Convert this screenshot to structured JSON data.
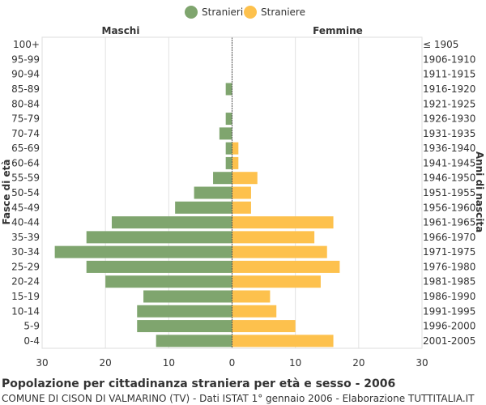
{
  "chart_data": {
    "type": "bar",
    "orientation": "horizontal",
    "title": "Popolazione per cittadinanza straniera per età e sesso - 2006",
    "subtitle": "COMUNE DI CISON DI VALMARINO (TV) - Dati ISTAT 1° gennaio 2006 - Elaborazione TUTTITALIA.IT",
    "left_header": "Maschi",
    "right_header": "Femmine",
    "ylabel_left": "Fasce di età",
    "ylabel_right": "Anni di nascita",
    "xlim": [
      -30,
      30
    ],
    "xticks": [
      -30,
      -20,
      -10,
      0,
      10,
      20,
      30
    ],
    "xtick_labels": [
      "30",
      "20",
      "10",
      "0",
      "10",
      "20",
      "30"
    ],
    "grid": true,
    "legend_position": "top-center",
    "age_groups": [
      "100+",
      "95-99",
      "90-94",
      "85-89",
      "80-84",
      "75-79",
      "70-74",
      "65-69",
      "60-64",
      "55-59",
      "50-54",
      "45-49",
      "40-44",
      "35-39",
      "30-34",
      "25-29",
      "20-24",
      "15-19",
      "10-14",
      "5-9",
      "0-4"
    ],
    "birth_years": [
      "≤ 1905",
      "1906-1910",
      "1911-1915",
      "1916-1920",
      "1921-1925",
      "1926-1930",
      "1931-1935",
      "1936-1940",
      "1941-1945",
      "1946-1950",
      "1951-1955",
      "1956-1960",
      "1961-1965",
      "1966-1970",
      "1971-1975",
      "1976-1980",
      "1981-1985",
      "1986-1990",
      "1991-1995",
      "1996-2000",
      "2001-2005"
    ],
    "series": [
      {
        "name": "Stranieri",
        "color": "#7fa56e",
        "side": "left",
        "values": [
          0,
          0,
          0,
          1,
          0,
          1,
          2,
          1,
          1,
          3,
          6,
          9,
          19,
          23,
          28,
          23,
          20,
          14,
          15,
          15,
          12
        ]
      },
      {
        "name": "Straniere",
        "color": "#fdc14d",
        "side": "right",
        "values": [
          0,
          0,
          0,
          0,
          0,
          0,
          0,
          1,
          1,
          4,
          3,
          3,
          16,
          13,
          15,
          17,
          14,
          6,
          7,
          10,
          16
        ]
      }
    ]
  }
}
